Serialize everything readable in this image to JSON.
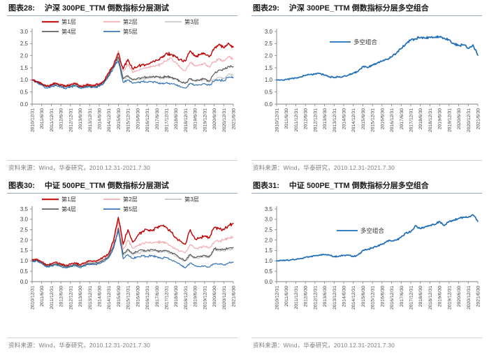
{
  "source_note": "资料来源：Wind，华泰研究，2010.12.31-2021.7.30",
  "colors": {
    "layer1_red": "#C00000",
    "layer2_pink": "#F2ABB1",
    "layer3_lightgray": "#C3C3C3",
    "layer4_darkgray": "#575757",
    "layer5_blue": "#2E6FB7",
    "long_short_blue": "#1F6EB5",
    "title_rule": "#94A8C0",
    "footer_rule": "#D2D2D2",
    "footer_text": "#7F7F7F",
    "axis": "#808080",
    "tick_text": "#3F3F3F"
  },
  "x_tick_labels": [
    "2010/12/31",
    "2011/6/30",
    "2011/12/31",
    "2012/6/30",
    "2012/12/31",
    "2013/6/30",
    "2013/12/31",
    "2014/6/30",
    "2014/12/31",
    "2015/6/30",
    "2015/12/31",
    "2016/6/30",
    "2016/12/31",
    "2017/6/30",
    "2017/12/31",
    "2018/6/30",
    "2018/12/31",
    "2019/6/30",
    "2019/12/31",
    "2020/6/30",
    "2020/12/31",
    "2021/6/30"
  ],
  "chart_data": [
    {
      "type": "line",
      "label": "图表28:",
      "title": "沪深 300PE_TTM 倒数指标分层测试",
      "ylim": [
        0,
        3.0
      ],
      "ytick_step": 0.5,
      "grid": false,
      "legend_layout": "two-row-top",
      "x_start": "2010/12/31",
      "x_end": "2021/6/30",
      "sampling": "quarterly",
      "series": [
        {
          "name": "第1层",
          "color": "#C00000",
          "values": [
            1.0,
            0.93,
            0.85,
            0.74,
            0.8,
            0.86,
            0.8,
            0.74,
            0.8,
            0.86,
            0.74,
            0.77,
            0.8,
            0.78,
            0.82,
            0.95,
            1.3,
            1.6,
            2.1,
            1.45,
            1.85,
            1.45,
            1.55,
            1.62,
            1.66,
            1.72,
            1.82,
            1.92,
            2.1,
            2.05,
            1.95,
            1.85,
            1.78,
            2.2,
            1.98,
            2.05,
            2.1,
            1.95,
            2.3,
            2.47,
            2.32,
            2.52,
            2.35
          ]
        },
        {
          "name": "第2层",
          "color": "#F2ABB1",
          "values": [
            1.0,
            0.94,
            0.87,
            0.77,
            0.82,
            0.88,
            0.83,
            0.77,
            0.83,
            0.88,
            0.77,
            0.8,
            0.82,
            0.8,
            0.84,
            0.96,
            1.28,
            1.62,
            2.2,
            1.35,
            1.65,
            1.3,
            1.4,
            1.46,
            1.5,
            1.55,
            1.6,
            1.66,
            1.78,
            1.9,
            1.72,
            1.5,
            1.38,
            1.72,
            1.58,
            1.64,
            1.7,
            1.52,
            1.75,
            1.88,
            1.78,
            1.96,
            1.85
          ]
        },
        {
          "name": "第3层",
          "color": "#C3C3C3",
          "values": [
            1.0,
            0.92,
            0.84,
            0.73,
            0.78,
            0.83,
            0.78,
            0.72,
            0.78,
            0.82,
            0.72,
            0.75,
            0.77,
            0.75,
            0.79,
            0.9,
            1.18,
            1.5,
            1.88,
            1.02,
            1.15,
            0.98,
            1.02,
            1.06,
            1.06,
            1.1,
            1.1,
            1.06,
            1.1,
            1.1,
            1.04,
            0.92,
            0.86,
            1.02,
            0.95,
            0.97,
            1.02,
            0.92,
            1.02,
            1.1,
            1.05,
            1.25,
            1.2
          ]
        },
        {
          "name": "第4层",
          "color": "#575757",
          "values": [
            1.0,
            0.91,
            0.82,
            0.71,
            0.76,
            0.81,
            0.76,
            0.7,
            0.76,
            0.8,
            0.7,
            0.73,
            0.75,
            0.73,
            0.77,
            0.9,
            1.22,
            1.55,
            1.95,
            1.06,
            1.18,
            1.02,
            1.06,
            1.1,
            1.1,
            1.14,
            1.14,
            1.1,
            1.14,
            1.1,
            1.05,
            0.92,
            0.86,
            1.06,
            0.96,
            1.0,
            1.05,
            0.95,
            1.25,
            1.4,
            1.44,
            1.56,
            1.55
          ]
        },
        {
          "name": "第5层",
          "color": "#2E6FB7",
          "values": [
            1.0,
            0.89,
            0.79,
            0.66,
            0.72,
            0.77,
            0.71,
            0.64,
            0.71,
            0.75,
            0.66,
            0.69,
            0.71,
            0.69,
            0.73,
            0.86,
            1.15,
            1.5,
            1.78,
            0.9,
            1.0,
            0.86,
            0.9,
            0.94,
            0.9,
            0.92,
            0.9,
            0.85,
            0.88,
            0.85,
            0.8,
            0.7,
            0.66,
            0.86,
            0.78,
            0.8,
            0.85,
            0.78,
            0.95,
            1.0,
            0.96,
            1.1,
            1.1
          ]
        }
      ]
    },
    {
      "type": "line",
      "label": "图表29:",
      "title": "沪深 300PE_TTM 倒数指标分层多空组合",
      "ylim": [
        0,
        3.0
      ],
      "ytick_step": 0.5,
      "grid": false,
      "legend_layout": "inline-single",
      "x_start": "2010/12/31",
      "x_end": "2021/6/30",
      "sampling": "quarterly",
      "series": [
        {
          "name": "多空组合",
          "color": "#1F6EB5",
          "values": [
            1.0,
            1.0,
            1.02,
            1.05,
            1.08,
            1.12,
            1.18,
            1.22,
            1.25,
            1.27,
            1.2,
            1.12,
            1.1,
            1.12,
            1.15,
            1.2,
            1.28,
            1.35,
            1.55,
            1.5,
            1.62,
            1.7,
            1.78,
            1.85,
            1.95,
            2.1,
            2.3,
            2.5,
            2.65,
            2.7,
            2.75,
            2.72,
            2.77,
            2.75,
            2.78,
            2.72,
            2.65,
            2.5,
            2.42,
            2.45,
            2.3,
            2.45,
            2.02
          ]
        }
      ]
    },
    {
      "type": "line",
      "label": "图表30:",
      "title": "中证 500PE_TTM 倒数指标分层测试",
      "ylim": [
        0,
        3.5
      ],
      "ytick_step": 0.5,
      "grid": false,
      "legend_layout": "two-row-top",
      "x_start": "2010/12/31",
      "x_end": "2021/6/30",
      "sampling": "quarterly",
      "series": [
        {
          "name": "第1层",
          "color": "#C00000",
          "values": [
            1.05,
            1.08,
            0.95,
            0.8,
            0.86,
            0.94,
            0.85,
            0.78,
            0.85,
            0.9,
            0.8,
            0.9,
            1.0,
            1.0,
            1.05,
            1.2,
            1.35,
            2.0,
            3.1,
            1.8,
            2.5,
            1.9,
            2.2,
            2.4,
            2.5,
            2.45,
            2.6,
            2.7,
            2.6,
            2.4,
            2.1,
            1.95,
            1.8,
            2.5,
            2.05,
            2.1,
            2.2,
            2.1,
            2.6,
            2.55,
            2.5,
            2.7,
            2.8
          ]
        },
        {
          "name": "第2层",
          "color": "#F2ABB1",
          "values": [
            1.02,
            1.05,
            0.92,
            0.78,
            0.83,
            0.9,
            0.82,
            0.75,
            0.82,
            0.87,
            0.77,
            0.86,
            0.95,
            0.95,
            1.0,
            1.13,
            1.28,
            1.85,
            2.9,
            1.55,
            2.0,
            1.6,
            1.75,
            1.85,
            1.88,
            1.85,
            1.9,
            1.9,
            1.85,
            1.7,
            1.55,
            1.45,
            1.4,
            1.8,
            1.6,
            1.65,
            1.7,
            1.62,
            1.9,
            1.95,
            2.0,
            2.1,
            2.15
          ]
        },
        {
          "name": "第3层",
          "color": "#C3C3C3",
          "values": [
            1.0,
            1.02,
            0.9,
            0.74,
            0.79,
            0.84,
            0.77,
            0.71,
            0.77,
            0.81,
            0.72,
            0.8,
            0.88,
            0.88,
            0.92,
            1.04,
            1.18,
            1.65,
            2.5,
            1.25,
            1.5,
            1.3,
            1.4,
            1.45,
            1.45,
            1.48,
            1.45,
            1.4,
            1.45,
            1.35,
            1.25,
            1.08,
            0.98,
            1.25,
            1.12,
            1.15,
            1.2,
            1.15,
            1.55,
            1.5,
            1.48,
            1.55,
            1.58
          ]
        },
        {
          "name": "第4层",
          "color": "#575757",
          "values": [
            1.0,
            1.03,
            0.91,
            0.75,
            0.8,
            0.86,
            0.78,
            0.72,
            0.78,
            0.82,
            0.73,
            0.81,
            0.89,
            0.89,
            0.93,
            1.06,
            1.22,
            1.7,
            2.58,
            1.32,
            1.56,
            1.36,
            1.46,
            1.52,
            1.5,
            1.55,
            1.5,
            1.46,
            1.5,
            1.4,
            1.3,
            1.12,
            1.02,
            1.32,
            1.16,
            1.2,
            1.26,
            1.2,
            1.6,
            1.56,
            1.55,
            1.62,
            1.65
          ]
        },
        {
          "name": "第5层",
          "color": "#2E6FB7",
          "values": [
            0.98,
            1.0,
            0.88,
            0.7,
            0.75,
            0.8,
            0.73,
            0.66,
            0.72,
            0.77,
            0.67,
            0.75,
            0.82,
            0.82,
            0.86,
            0.98,
            1.15,
            1.6,
            2.45,
            1.1,
            1.3,
            1.12,
            1.2,
            1.26,
            1.2,
            1.26,
            1.2,
            1.12,
            1.16,
            1.05,
            0.95,
            0.8,
            0.66,
            0.9,
            0.76,
            0.72,
            0.76,
            0.7,
            0.86,
            0.85,
            0.8,
            0.9,
            0.95
          ]
        }
      ]
    },
    {
      "type": "line",
      "label": "图表31:",
      "title": "中证 500PE_TTM 倒数指标分层多空组合",
      "ylim": [
        0,
        3.5
      ],
      "ytick_step": 0.5,
      "grid": false,
      "legend_layout": "inline-single",
      "x_start": "2010/12/31",
      "x_end": "2021/6/30",
      "sampling": "quarterly",
      "series": [
        {
          "name": "多空组合",
          "color": "#1F6EB5",
          "values": [
            1.0,
            1.02,
            1.03,
            1.05,
            1.07,
            1.12,
            1.17,
            1.2,
            1.25,
            1.28,
            1.3,
            1.28,
            1.2,
            1.22,
            1.27,
            1.28,
            1.2,
            1.3,
            1.5,
            1.55,
            1.62,
            1.7,
            1.8,
            1.95,
            1.95,
            2.0,
            2.15,
            2.35,
            2.4,
            2.7,
            2.55,
            2.65,
            2.7,
            2.75,
            2.9,
            2.7,
            2.9,
            2.95,
            3.05,
            3.1,
            3.1,
            3.22,
            2.9
          ]
        }
      ]
    }
  ]
}
